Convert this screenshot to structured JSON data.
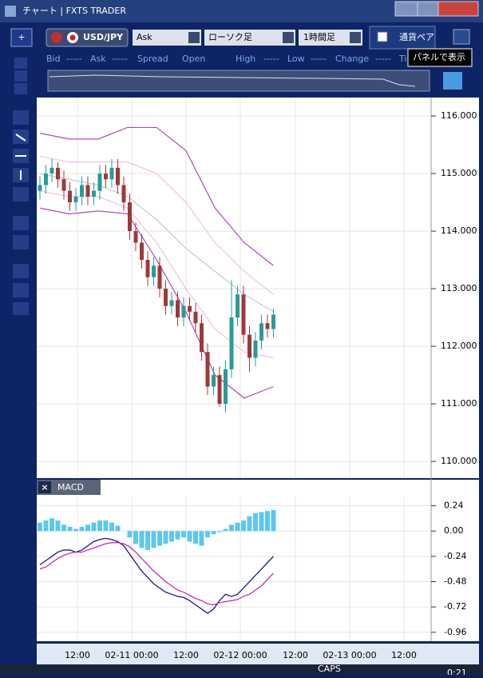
{
  "window": {
    "title": "チャート | FXTS TRADER"
  },
  "toolbar": {
    "symbol": "USD/JPY",
    "price_side": "Ask",
    "chart_type": "ローソク足",
    "timeframe": "1時間足",
    "pair_button": "通貨ペア",
    "tooltip": "パネルで表示"
  },
  "quote_bar": [
    "Bid",
    "-----",
    "Ask",
    "-----",
    "Spread",
    "Open",
    "High",
    "-----",
    "Low",
    "-----",
    "Change",
    "-----",
    "Ti"
  ],
  "chart_data": [
    {
      "type": "candlestick",
      "up_color": "#2a9a9a",
      "down_color": "#a03838",
      "grid": true,
      "candles": [
        [
          114.7,
          114.95,
          114.55,
          114.8
        ],
        [
          114.8,
          115.15,
          114.65,
          115.0
        ],
        [
          115.0,
          115.25,
          114.85,
          115.1
        ],
        [
          115.1,
          115.2,
          114.75,
          114.9
        ],
        [
          114.9,
          115.05,
          114.55,
          114.7
        ],
        [
          114.7,
          114.85,
          114.35,
          114.5
        ],
        [
          114.5,
          114.75,
          114.35,
          114.6
        ],
        [
          114.6,
          114.95,
          114.45,
          114.8
        ],
        [
          114.8,
          114.95,
          114.45,
          114.6
        ],
        [
          114.6,
          114.85,
          114.45,
          114.7
        ],
        [
          114.7,
          115.15,
          114.55,
          115.0
        ],
        [
          115.0,
          115.15,
          114.75,
          114.9
        ],
        [
          114.9,
          115.25,
          114.75,
          115.1
        ],
        [
          115.1,
          115.25,
          114.65,
          114.8
        ],
        [
          114.8,
          114.95,
          114.35,
          114.5
        ],
        [
          114.5,
          114.65,
          113.85,
          114.0
        ],
        [
          114.0,
          114.15,
          113.65,
          113.8
        ],
        [
          113.8,
          113.95,
          113.35,
          113.5
        ],
        [
          113.5,
          113.65,
          113.05,
          113.2
        ],
        [
          113.2,
          113.55,
          113.05,
          113.4
        ],
        [
          113.4,
          113.55,
          112.85,
          113.0
        ],
        [
          113.0,
          113.15,
          112.55,
          112.7
        ],
        [
          112.7,
          112.95,
          112.55,
          112.8
        ],
        [
          112.8,
          112.95,
          112.35,
          112.5
        ],
        [
          112.5,
          112.85,
          112.35,
          112.7
        ],
        [
          112.7,
          112.85,
          112.45,
          112.6
        ],
        [
          112.6,
          112.75,
          112.25,
          112.4
        ],
        [
          112.4,
          112.55,
          111.75,
          111.9
        ],
        [
          111.9,
          112.05,
          111.15,
          111.3
        ],
        [
          111.3,
          111.65,
          111.15,
          111.5
        ],
        [
          111.5,
          111.65,
          110.95,
          111.0
        ],
        [
          111.0,
          111.75,
          110.85,
          111.6
        ],
        [
          111.6,
          113.15,
          111.45,
          112.5
        ],
        [
          112.5,
          113.05,
          112.35,
          112.9
        ],
        [
          112.9,
          113.05,
          112.05,
          112.2
        ],
        [
          112.2,
          112.35,
          111.55,
          111.8
        ],
        [
          111.8,
          112.25,
          111.65,
          112.1
        ],
        [
          112.1,
          112.55,
          111.95,
          112.4
        ],
        [
          112.4,
          112.55,
          112.15,
          112.3
        ],
        [
          112.3,
          112.65,
          112.15,
          112.55
        ]
      ],
      "bands": [
        {
          "color": "#b04ab8",
          "values": [
            115.7,
            115.6,
            115.6,
            115.8,
            115.8,
            115.4,
            114.4,
            113.8,
            113.4
          ]
        },
        {
          "color": "#f0c0e8",
          "values": [
            115.3,
            115.2,
            115.2,
            115.2,
            115.0,
            114.5,
            113.8,
            113.3,
            112.9
          ]
        },
        {
          "color": "#c8c8c8",
          "values": [
            115.0,
            114.9,
            114.8,
            114.6,
            114.2,
            113.7,
            113.3,
            112.9,
            112.6
          ]
        },
        {
          "color": "#f0c0e8",
          "values": [
            114.7,
            114.6,
            114.6,
            114.4,
            113.8,
            113.0,
            112.3,
            111.9,
            111.8
          ]
        },
        {
          "color": "#b04ab8",
          "values": [
            114.4,
            114.3,
            114.35,
            114.3,
            113.5,
            112.6,
            111.5,
            111.1,
            111.3
          ]
        }
      ],
      "ylim": [
        109.71,
        116.32
      ],
      "yticks": [
        {
          "value": 116,
          "label": "116.000"
        },
        {
          "value": 115,
          "label": "115.000"
        },
        {
          "value": 114,
          "label": "114.000"
        },
        {
          "value": 113,
          "label": "113.000"
        },
        {
          "value": 112,
          "label": "112.000"
        },
        {
          "value": 111,
          "label": "111.000"
        },
        {
          "value": 110,
          "label": "110.000"
        }
      ],
      "xticks": [
        "12:00",
        "02-11 00:00",
        "12:00",
        "02-12 00:00",
        "12:00",
        "02-13 00:00",
        "12:00"
      ]
    },
    {
      "type": "macd",
      "title": "MACD",
      "histogram_color": "#5bc8f0",
      "macd_color": "#1a1a80",
      "signal_color": "#c030b0",
      "histogram": [
        0.08,
        0.1,
        0.12,
        0.1,
        0.06,
        0.04,
        0.02,
        0.04,
        0.06,
        0.08,
        0.1,
        0.1,
        0.08,
        0.05,
        0.0,
        -0.06,
        -0.12,
        -0.16,
        -0.18,
        -0.16,
        -0.14,
        -0.12,
        -0.1,
        -0.08,
        -0.06,
        -0.1,
        -0.12,
        -0.14,
        -0.06,
        -0.03,
        -0.01,
        0.02,
        0.06,
        0.08,
        0.1,
        0.14,
        0.17,
        0.18,
        0.19,
        0.2
      ],
      "macd": [
        -0.32,
        -0.28,
        -0.24,
        -0.2,
        -0.18,
        -0.18,
        -0.2,
        -0.18,
        -0.14,
        -0.1,
        -0.08,
        -0.07,
        -0.08,
        -0.1,
        -0.14,
        -0.22,
        -0.3,
        -0.38,
        -0.44,
        -0.5,
        -0.54,
        -0.58,
        -0.6,
        -0.62,
        -0.63,
        -0.66,
        -0.7,
        -0.74,
        -0.78,
        -0.74,
        -0.66,
        -0.6,
        -0.62,
        -0.6,
        -0.54,
        -0.48,
        -0.42,
        -0.36,
        -0.3,
        -0.24
      ],
      "signal": [
        -0.36,
        -0.34,
        -0.3,
        -0.26,
        -0.23,
        -0.21,
        -0.2,
        -0.2,
        -0.18,
        -0.16,
        -0.14,
        -0.12,
        -0.11,
        -0.11,
        -0.12,
        -0.15,
        -0.2,
        -0.26,
        -0.32,
        -0.38,
        -0.43,
        -0.48,
        -0.52,
        -0.56,
        -0.58,
        -0.61,
        -0.64,
        -0.66,
        -0.69,
        -0.7,
        -0.68,
        -0.67,
        -0.66,
        -0.65,
        -0.62,
        -0.6,
        -0.56,
        -0.52,
        -0.46,
        -0.4
      ],
      "ylim": [
        -1.03,
        0.32
      ],
      "yticks": [
        {
          "value": 0.24,
          "label": "0.24"
        },
        {
          "value": 0,
          "label": "0.00"
        },
        {
          "value": -0.24,
          "label": "-0.24"
        },
        {
          "value": -0.48,
          "label": "-0.48"
        },
        {
          "value": -0.72,
          "label": "-0.72"
        },
        {
          "value": -0.96,
          "label": "-0.96"
        }
      ]
    }
  ],
  "taskbar": {
    "caps": "CAPS",
    "clock": "0:21"
  }
}
